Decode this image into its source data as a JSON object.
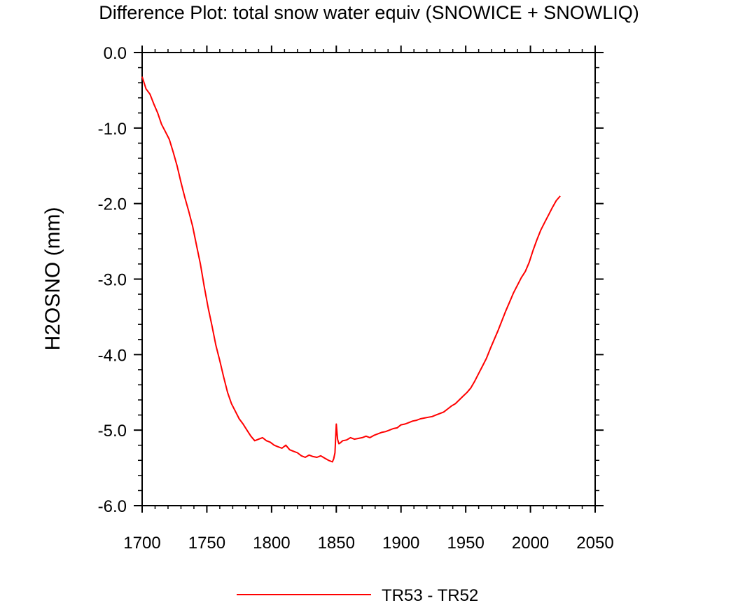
{
  "chart_data": {
    "type": "line",
    "title": "Difference Plot: total snow water equiv (SNOWICE + SNOWLIQ)",
    "xlabel": "",
    "ylabel": "H2OSNO  (mm)",
    "xlim": [
      1700,
      2050
    ],
    "ylim": [
      -6.0,
      0.0
    ],
    "xticks": [
      1700,
      1750,
      1800,
      1850,
      1900,
      1950,
      2000,
      2050
    ],
    "xtick_labels": [
      "1700",
      "1750",
      "1800",
      "1850",
      "1900",
      "1950",
      "2000",
      "2050"
    ],
    "yticks": [
      0.0,
      -1.0,
      -2.0,
      -3.0,
      -4.0,
      -5.0,
      -6.0
    ],
    "ytick_labels": [
      "0.0",
      "-1.0",
      "-2.0",
      "-3.0",
      "-4.0",
      "-5.0",
      "-6.0"
    ],
    "legend_position": "bottom-center",
    "series": [
      {
        "name": "TR53 - TR52",
        "color": "#ff0000",
        "x": [
          1700,
          1703,
          1706,
          1709,
          1712,
          1715,
          1718,
          1721,
          1724,
          1727,
          1730,
          1733,
          1736,
          1739,
          1742,
          1745,
          1748,
          1751,
          1754,
          1757,
          1760,
          1763,
          1766,
          1769,
          1772,
          1775,
          1778,
          1781,
          1784,
          1787,
          1790,
          1793,
          1796,
          1799,
          1802,
          1805,
          1808,
          1811,
          1814,
          1817,
          1820,
          1823,
          1826,
          1829,
          1832,
          1835,
          1838,
          1841,
          1844,
          1847,
          1848,
          1849,
          1850,
          1851,
          1852,
          1853,
          1855,
          1858,
          1861,
          1864,
          1867,
          1870,
          1873,
          1876,
          1879,
          1882,
          1885,
          1888,
          1891,
          1894,
          1897,
          1900,
          1903,
          1906,
          1909,
          1912,
          1915,
          1918,
          1921,
          1924,
          1927,
          1930,
          1933,
          1936,
          1939,
          1942,
          1945,
          1948,
          1951,
          1954,
          1957,
          1960,
          1963,
          1966,
          1969,
          1972,
          1975,
          1978,
          1981,
          1984,
          1987,
          1990,
          1993,
          1996,
          1999,
          2002,
          2005,
          2008,
          2011,
          2014,
          2017,
          2020,
          2023
        ],
        "y": [
          -0.32,
          -0.48,
          -0.55,
          -0.68,
          -0.8,
          -0.95,
          -1.05,
          -1.15,
          -1.32,
          -1.5,
          -1.72,
          -1.92,
          -2.1,
          -2.3,
          -2.55,
          -2.8,
          -3.1,
          -3.38,
          -3.62,
          -3.88,
          -4.08,
          -4.3,
          -4.5,
          -4.65,
          -4.75,
          -4.85,
          -4.92,
          -5.0,
          -5.08,
          -5.14,
          -5.12,
          -5.1,
          -5.14,
          -5.16,
          -5.2,
          -5.22,
          -5.24,
          -5.2,
          -5.26,
          -5.28,
          -5.3,
          -5.34,
          -5.36,
          -5.33,
          -5.35,
          -5.36,
          -5.34,
          -5.37,
          -5.4,
          -5.42,
          -5.38,
          -5.3,
          -4.92,
          -5.12,
          -5.18,
          -5.17,
          -5.14,
          -5.13,
          -5.1,
          -5.12,
          -5.11,
          -5.1,
          -5.08,
          -5.1,
          -5.07,
          -5.05,
          -5.03,
          -5.02,
          -5.0,
          -4.98,
          -4.97,
          -4.93,
          -4.92,
          -4.9,
          -4.88,
          -4.87,
          -4.85,
          -4.84,
          -4.83,
          -4.82,
          -4.8,
          -4.78,
          -4.76,
          -4.72,
          -4.68,
          -4.65,
          -4.6,
          -4.55,
          -4.5,
          -4.44,
          -4.35,
          -4.25,
          -4.15,
          -4.05,
          -3.92,
          -3.8,
          -3.68,
          -3.55,
          -3.42,
          -3.3,
          -3.18,
          -3.08,
          -2.98,
          -2.9,
          -2.78,
          -2.62,
          -2.48,
          -2.35,
          -2.25,
          -2.15,
          -2.05,
          -1.96,
          -1.9
        ]
      }
    ]
  }
}
